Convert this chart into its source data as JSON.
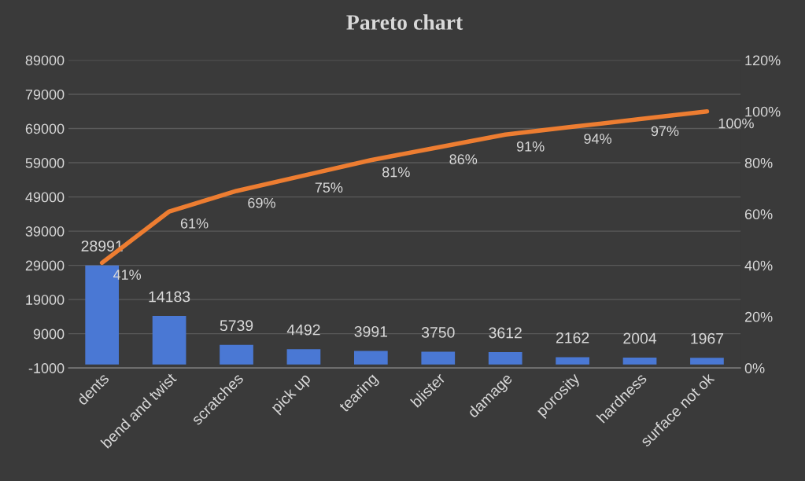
{
  "chart_data": {
    "type": "bar",
    "title": "Pareto chart",
    "categories": [
      "dents",
      "bend and twist",
      "scratches",
      "pick up",
      "tearing",
      "blister",
      "damage",
      "porosity",
      "hardness",
      "surface not ok"
    ],
    "series": [
      {
        "color": "#4a78d4",
        "values": [
          28991,
          14183,
          5739,
          4492,
          3991,
          3750,
          3612,
          2162,
          2004,
          1967
        ],
        "value_labels": [
          "28991",
          "14183",
          "5739",
          "4492",
          "3991",
          "3750",
          "3612",
          "2162",
          "2004",
          "1967"
        ]
      },
      {
        "type": "line",
        "axis": "y2",
        "color": "#ed7d31",
        "values": [
          41,
          61,
          69,
          75,
          81,
          86,
          91,
          94,
          97,
          100
        ],
        "value_labels": [
          "41%",
          "61%",
          "69%",
          "75%",
          "81%",
          "86%",
          "91%",
          "94%",
          "97%",
          "100%"
        ]
      }
    ],
    "ylim": [
      -1000,
      89000
    ],
    "yticks": [
      -1000,
      9000,
      19000,
      29000,
      39000,
      49000,
      59000,
      69000,
      79000,
      89000
    ],
    "y2lim": [
      0,
      120
    ],
    "y2ticks": [
      {
        "value": 0,
        "label": "0%"
      },
      {
        "value": 20,
        "label": "20%"
      },
      {
        "value": 40,
        "label": "40%"
      },
      {
        "value": 60,
        "label": "60%"
      },
      {
        "value": 80,
        "label": "80%"
      },
      {
        "value": 100,
        "label": "100%"
      },
      {
        "value": 120,
        "label": "120%"
      }
    ],
    "grid": "y",
    "marker": "none",
    "line_style": "solid"
  }
}
